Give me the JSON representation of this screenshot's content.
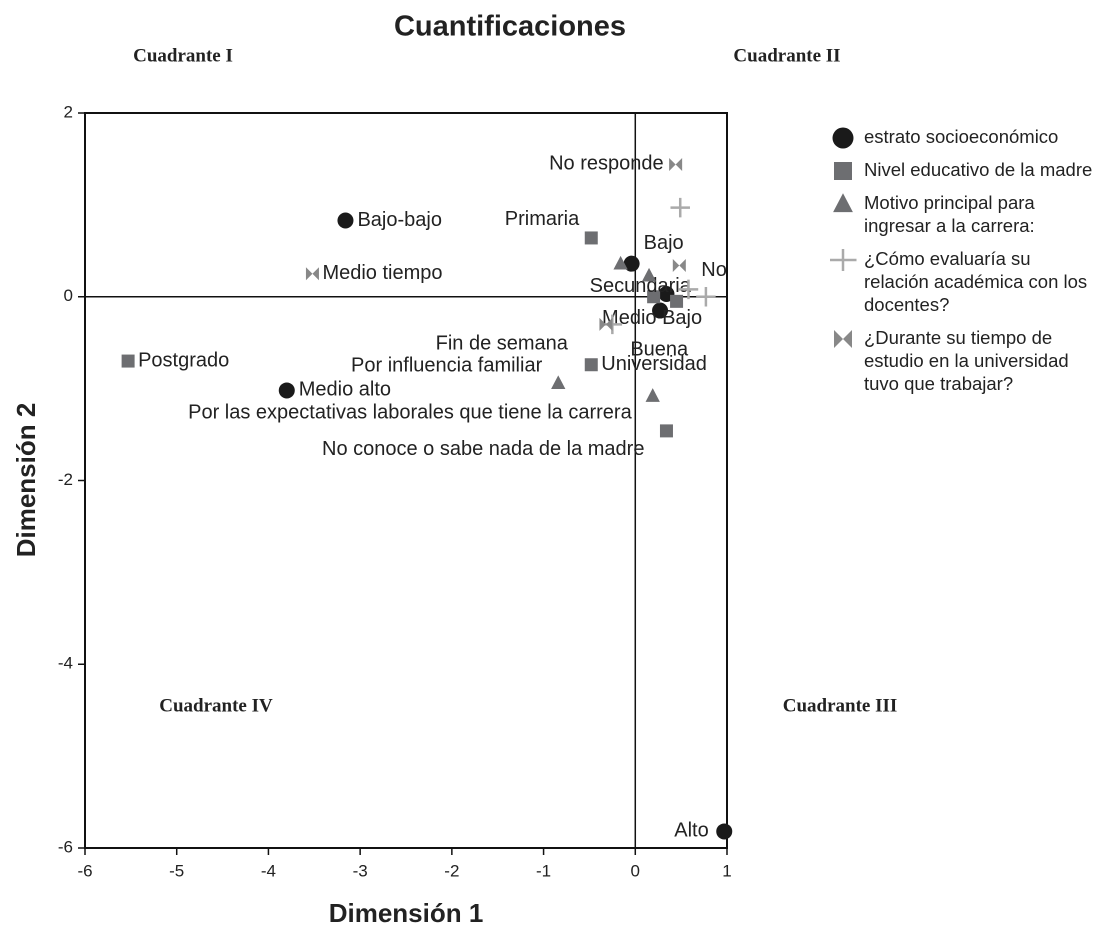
{
  "chart_data": {
    "type": "scatter",
    "title": "Cuantificaciones",
    "xlabel": "Dimensión 1",
    "ylabel": "Dimensión 2",
    "xlim": [
      -6,
      1
    ],
    "ylim": [
      -6,
      2
    ],
    "xticks": [
      -6,
      -5,
      -4,
      -3,
      -2,
      -1,
      0,
      1
    ],
    "yticks": [
      -6,
      -4,
      -2,
      0,
      2
    ],
    "annotations": [
      "Cuadrante I",
      "Cuadrante II",
      "Cuadrante III",
      "Cuadrante IV"
    ],
    "series": [
      {
        "name": "estrato socioeconómico",
        "color": "#1a1a1a",
        "marker": "circle",
        "x": [
          -3.16,
          -3.8,
          -0.04,
          0.34,
          0.27,
          0.97
        ],
        "y": [
          0.83,
          -1.02,
          0.36,
          0.03,
          -0.15,
          -5.82
        ],
        "labels": [
          "Bajo-bajo",
          "Medio alto",
          "Bajo",
          null,
          "Medio Bajo",
          "Alto"
        ]
      },
      {
        "name": "Nivel educativo de la madre",
        "color": "#6d6e71",
        "marker": "square",
        "x": [
          -0.48,
          0.2,
          0.45,
          -0.48,
          -5.53,
          0.34
        ],
        "y": [
          0.64,
          0.0,
          -0.05,
          -0.74,
          -0.7,
          -1.46
        ],
        "labels": [
          "Primaria",
          "Secundaria",
          null,
          "Universidad",
          "Postgrado",
          "No conoce o sabe nada de la madre"
        ]
      },
      {
        "name": "Motivo principal para ingresar a la carrera:",
        "color": "#6d6e71",
        "marker": "triangle",
        "x": [
          -0.16,
          0.15,
          -0.84,
          0.19
        ],
        "y": [
          0.36,
          0.23,
          -0.94,
          -1.08
        ],
        "labels": [
          null,
          null,
          "Por influencia familiar",
          "Por las expectativas laborales que tiene la carrera"
        ]
      },
      {
        "name": "¿Cómo evaluaría su relación académica con los docentes?",
        "color": "#aaaaaa",
        "marker": "plus",
        "x": [
          0.49,
          0.58,
          0.77,
          -0.25
        ],
        "y": [
          0.97,
          0.08,
          0.0,
          -0.3
        ],
        "labels": [
          null,
          null,
          null,
          "Buena"
        ]
      },
      {
        "name": "¿Durante su tiempo de estudio en la universidad tuvo que trabajar?",
        "color": "#888888",
        "marker": "bowtie",
        "x": [
          0.44,
          -3.52,
          0.48,
          -0.32
        ],
        "y": [
          1.44,
          0.25,
          0.34,
          -0.3
        ],
        "labels": [
          "No responde",
          "Medio tiempo",
          "No",
          "Fin de semana"
        ]
      }
    ]
  }
}
